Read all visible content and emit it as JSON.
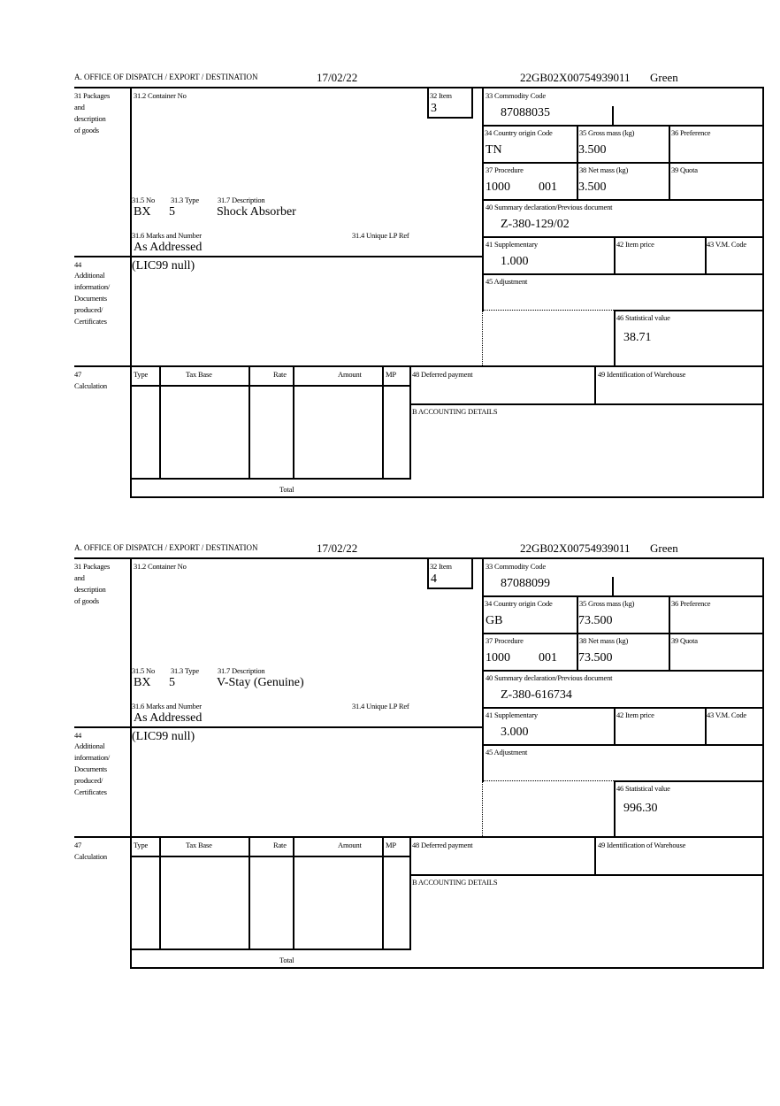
{
  "labels": {
    "office": "A.  OFFICE OF DISPATCH / EXPORT / DESTINATION",
    "box31_1": "31 Packages",
    "box31_2": "and",
    "box31_3": "description",
    "box31_4": "of goods",
    "container_no": "31.2 Container No",
    "item": "32 Item",
    "commodity_code": "33 Commodity Code",
    "country_origin": "34 Country origin Code",
    "gross_mass": "35 Gross mass (kg)",
    "preference": "36 Preference",
    "procedure": "37 Procedure",
    "net_mass": "38 Net mass (kg)",
    "quota": "39 Quota",
    "summary_decl": "40 Summary declaration/Previous document",
    "pkg_no": "31.5 No",
    "pkg_type": "31.3 Type",
    "pkg_desc": "31.7 Description",
    "marks": "31.6 Marks and Number",
    "unique_lp": "31.4 Unique LP Ref",
    "supplementary": "41 Supplementary",
    "item_price": "42 Item price",
    "vm_code": "43 V.M. Code",
    "box44_1": "44",
    "box44_2": "Additional",
    "box44_3": "information/",
    "box44_4": "Documents",
    "box44_5": "produced/",
    "box44_6": "Certificates",
    "adjustment": "45 Adjustment",
    "statistical_value": "46 Statistical value",
    "box47_1": "47",
    "box47_2": "Calculation",
    "calc_type": "Type",
    "calc_tax_base": "Tax Base",
    "calc_rate": "Rate",
    "calc_amount": "Amount",
    "calc_mp": "MP",
    "calc_total": "Total",
    "deferred_payment": "48 Deferred payment",
    "warehouse": "49 Identification of Warehouse",
    "accounting": "B ACCOUNTING DETAILS"
  },
  "forms": [
    {
      "date": "17/02/22",
      "reference": "22GB02X00754939011",
      "route": "Green",
      "item": "3",
      "commodity_code": "87088035",
      "country_origin": "TN",
      "gross_mass": "3.500",
      "procedure_1": "1000",
      "procedure_2": "001",
      "net_mass": "3.500",
      "summary_decl": "Z-380-129/02",
      "pkg_no": "BX",
      "pkg_type": "5",
      "pkg_desc": "Shock Absorber",
      "marks": "As Addressed",
      "supplementary": "1.000",
      "additional_info": "(LIC99 null)",
      "statistical_value": "38.71"
    },
    {
      "date": "17/02/22",
      "reference": "22GB02X00754939011",
      "route": "Green",
      "item": "4",
      "commodity_code": "87088099",
      "country_origin": "GB",
      "gross_mass": "73.500",
      "procedure_1": "1000",
      "procedure_2": "001",
      "net_mass": "73.500",
      "summary_decl": "Z-380-616734",
      "pkg_no": "BX",
      "pkg_type": "5",
      "pkg_desc": "V-Stay (Genuine)",
      "marks": "As Addressed",
      "supplementary": "3.000",
      "additional_info": "(LIC99 null)",
      "statistical_value": "996.30"
    }
  ]
}
